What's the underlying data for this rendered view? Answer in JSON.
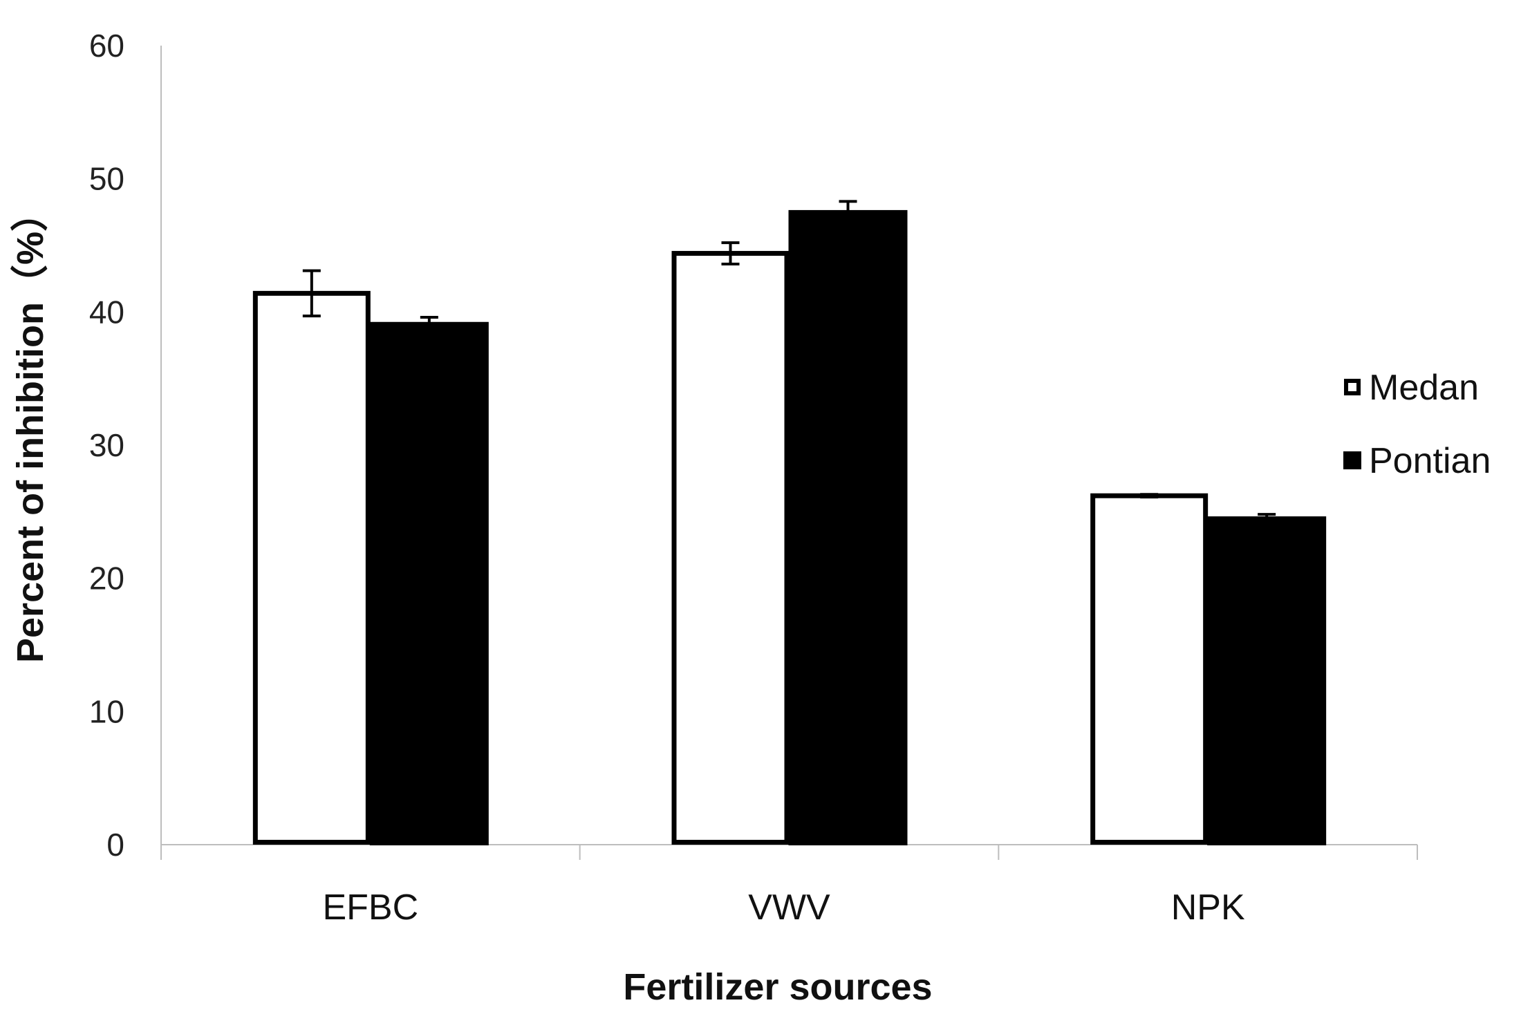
{
  "chart_data": {
    "type": "bar",
    "title": "",
    "xlabel": "Fertilizer sources",
    "ylabel": "Percent of inhibition（%）",
    "categories": [
      "EFBC",
      "VWV",
      "NPK"
    ],
    "ylim": [
      0,
      60
    ],
    "yticks": [
      0,
      10,
      20,
      30,
      40,
      50,
      60
    ],
    "grid": false,
    "legend_position": "right",
    "series": [
      {
        "name": "Medan",
        "values": [
          41.4,
          44.4,
          26.2
        ],
        "errors": [
          1.7,
          0.8,
          0.1
        ],
        "fill": "#ffffff",
        "stroke": "#000000"
      },
      {
        "name": "Pontian",
        "values": [
          39.2,
          47.6,
          24.6
        ],
        "errors": [
          0.4,
          0.7,
          0.2
        ],
        "fill": "#000000",
        "stroke": "#000000"
      }
    ]
  }
}
